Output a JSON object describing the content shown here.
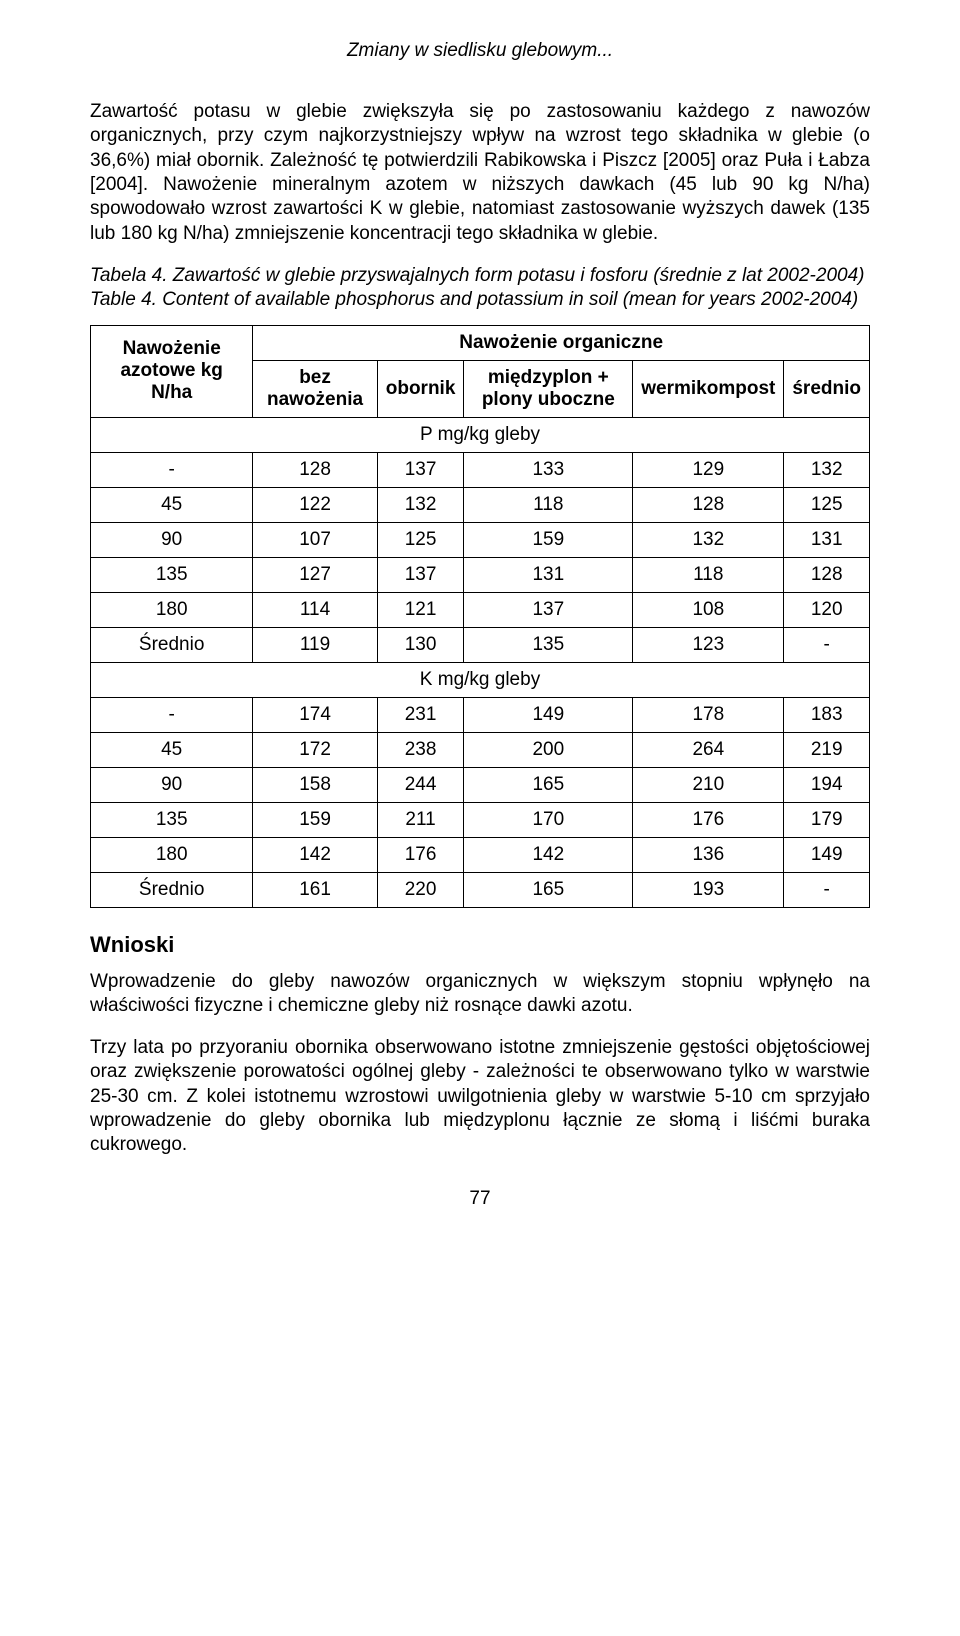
{
  "running_title": "Zmiany w siedlisku glebowym...",
  "paragraph1": "Zawartość potasu w glebie zwiększyła się po zastosowaniu każdego z nawozów organicznych, przy czym najkorzystniejszy wpływ na wzrost tego składnika w glebie (o 36,6%) miał obornik. Zależność tę potwierdzili Rabikowska i Piszcz [2005] oraz Puła i Łabza [2004]. Nawożenie mineralnym azotem w niższych dawkach (45 lub 90 kg N/ha) spowodowało wzrost zawartości K w glebie, natomiast zastosowanie wyższych dawek (135 lub 180 kg N/ha) zmniejszenie koncentracji tego składnika w glebie.",
  "caption_pl_prefix": "Tabela 4. ",
  "caption_pl_title": "Zawartość w glebie przyswajalnych form potasu i fosforu (średnie z lat 2002-2004)",
  "caption_en_prefix": "Table 4. ",
  "caption_en_title": "Content of available phosphorus and potassium in soil (mean for years 2002-2004)",
  "table": {
    "col_header_left": "Nawożenie azotowe kg N/ha",
    "col_header_group": "Nawożenie organiczne",
    "sub_headers": [
      "bez nawożenia",
      "obornik",
      "międzyplon + plony uboczne",
      "wermikompost",
      "średnio"
    ],
    "section1_label": "P mg/kg gleby",
    "section1_rows": [
      [
        "-",
        "128",
        "137",
        "133",
        "129",
        "132"
      ],
      [
        "45",
        "122",
        "132",
        "118",
        "128",
        "125"
      ],
      [
        "90",
        "107",
        "125",
        "159",
        "132",
        "131"
      ],
      [
        "135",
        "127",
        "137",
        "131",
        "118",
        "128"
      ],
      [
        "180",
        "114",
        "121",
        "137",
        "108",
        "120"
      ],
      [
        "Średnio",
        "119",
        "130",
        "135",
        "123",
        "-"
      ]
    ],
    "section2_label": "K mg/kg gleby",
    "section2_rows": [
      [
        "-",
        "174",
        "231",
        "149",
        "178",
        "183"
      ],
      [
        "45",
        "172",
        "238",
        "200",
        "264",
        "219"
      ],
      [
        "90",
        "158",
        "244",
        "165",
        "210",
        "194"
      ],
      [
        "135",
        "159",
        "211",
        "170",
        "176",
        "179"
      ],
      [
        "180",
        "142",
        "176",
        "142",
        "136",
        "149"
      ],
      [
        "Średnio",
        "161",
        "220",
        "165",
        "193",
        "-"
      ]
    ]
  },
  "conclusions_title": "Wnioski",
  "paragraph2": "Wprowadzenie do gleby nawozów organicznych w większym stopniu wpłynęło na właściwości fizyczne i chemiczne gleby niż rosnące dawki azotu.",
  "paragraph3": "Trzy lata po przyoraniu obornika obserwowano istotne zmniejszenie gęstości objętościowej oraz zwiększenie porowatości ogólnej gleby - zależności te obserwowano tylko w warstwie 25-30 cm. Z kolei istotnemu wzrostowi uwilgotnienia gleby w warstwie 5-10 cm sprzyjało wprowadzenie do gleby obornika lub międzyplonu łącznie ze słomą i liśćmi buraka cukrowego.",
  "page_number": "77"
}
